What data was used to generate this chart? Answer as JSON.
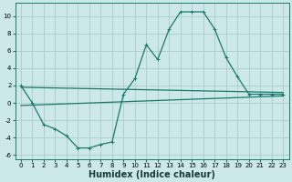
{
  "title": "",
  "xlabel": "Humidex (Indice chaleur)",
  "bg_color": "#cce8e8",
  "grid_color": "#aacccc",
  "line_color": "#1a7a6a",
  "xlim": [
    -0.5,
    23.5
  ],
  "ylim": [
    -6.5,
    11.5
  ],
  "xticks": [
    0,
    1,
    2,
    3,
    4,
    5,
    6,
    7,
    8,
    9,
    10,
    11,
    12,
    13,
    14,
    15,
    16,
    17,
    18,
    19,
    20,
    21,
    22,
    23
  ],
  "yticks": [
    -6,
    -4,
    -2,
    0,
    2,
    4,
    6,
    8,
    10
  ],
  "line1_x": [
    0,
    1,
    2,
    3,
    4,
    5,
    6,
    7,
    8,
    9,
    10,
    11,
    12,
    13,
    14,
    15,
    16,
    17,
    18,
    19,
    20,
    21,
    22,
    23
  ],
  "line1_y": [
    2,
    0,
    -2.5,
    -3.0,
    -3.8,
    -5.2,
    -5.2,
    -4.8,
    -4.5,
    1.0,
    2.8,
    6.7,
    5.0,
    8.5,
    10.5,
    10.5,
    10.5,
    8.5,
    5.2,
    3.0,
    1.0,
    1.0,
    1.0,
    1.0
  ],
  "line2_x": [
    0,
    23
  ],
  "line2_y": [
    1.8,
    1.2
  ],
  "line3_x": [
    0,
    23
  ],
  "line3_y": [
    -0.3,
    0.8
  ],
  "xlabel_fontsize": 7,
  "tick_fontsize": 5,
  "linewidth": 0.9,
  "markersize": 2.5
}
